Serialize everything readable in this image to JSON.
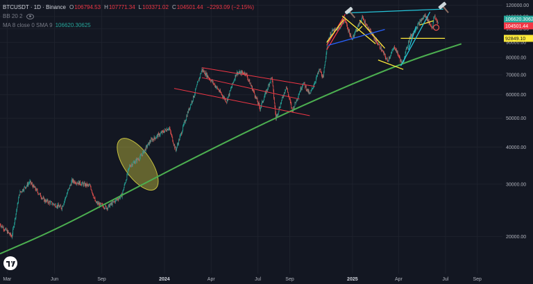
{
  "legend": {
    "symbol": "BTCUSDT · 1D · Binance",
    "o_key": "O",
    "o_val": "106794.53",
    "h_key": "H",
    "h_val": "107771.34",
    "l_key": "L",
    "l_val": "103371.02",
    "c_key": "C",
    "c_val": "104501.44",
    "change": "−2293.09 (−2.15%)",
    "bb_label": "BB 20 2",
    "ma_label": "MA 8 close 0 SMA 9",
    "ma_value": "106620.30625"
  },
  "colors": {
    "background": "#131722",
    "bull": "#26a69a",
    "bear": "#ef5350",
    "support_curve": "#4caf50",
    "channel": "#f23645",
    "yellow": "#ffeb3b",
    "cyan": "#26c6da",
    "blue": "#2962ff",
    "ellipse": "#c6c040"
  },
  "price_axis": {
    "labels": [
      "120000.00",
      "110000.00",
      "100000.00",
      "90000.00",
      "80000.00",
      "70000.00",
      "60000.00",
      "50000.00",
      "40000.00",
      "30000.00",
      "20000.00"
    ],
    "badges": [
      {
        "text": "106620.3062",
        "color": "#26a69a"
      },
      {
        "text": "104501.44",
        "color": "#f23645"
      },
      {
        "text": "92849.10",
        "color": "#ffeb3b"
      }
    ]
  },
  "time_axis": {
    "labels": [
      "Mar",
      "Jun",
      "Sep",
      "2024",
      "Apr",
      "Jul",
      "Sep",
      "2025",
      "Apr",
      "Jul",
      "Sep"
    ],
    "bold": [
      "2024",
      "2025"
    ]
  },
  "chart_data": {
    "type": "candlestick",
    "symbol": "BTCUSDT",
    "interval": "1D",
    "exchange": "Binance",
    "y_scale": "log",
    "ylim": [
      15000,
      125000
    ],
    "xlim": [
      "2023-02-15",
      "2025-10-20"
    ],
    "ohlc_last": {
      "open": 106794.53,
      "high": 107771.34,
      "low": 103371.02,
      "close": 104501.44,
      "change": -2293.09,
      "change_pct": -2.15
    },
    "ma_value": 106620.30625,
    "horizontal_level": 92849.1,
    "price_path": [
      [
        "2023-02-15",
        22000
      ],
      [
        "2023-03-10",
        20000
      ],
      [
        "2023-03-25",
        28000
      ],
      [
        "2023-04-14",
        30500
      ],
      [
        "2023-05-12",
        26500
      ],
      [
        "2023-06-15",
        25000
      ],
      [
        "2023-07-05",
        30800
      ],
      [
        "2023-08-10",
        29500
      ],
      [
        "2023-08-20",
        26000
      ],
      [
        "2023-09-11",
        25000
      ],
      [
        "2023-10-10",
        27500
      ],
      [
        "2023-10-25",
        34500
      ],
      [
        "2023-11-15",
        37000
      ],
      [
        "2023-12-05",
        42000
      ],
      [
        "2024-01-10",
        46500
      ],
      [
        "2024-01-23",
        39000
      ],
      [
        "2024-02-15",
        52000
      ],
      [
        "2024-02-28",
        60000
      ],
      [
        "2024-03-14",
        73000
      ],
      [
        "2024-04-01",
        67000
      ],
      [
        "2024-04-13",
        63000
      ],
      [
        "2024-05-01",
        57000
      ],
      [
        "2024-05-20",
        71000
      ],
      [
        "2024-06-07",
        71000
      ],
      [
        "2024-06-25",
        60000
      ],
      [
        "2024-07-05",
        54000
      ],
      [
        "2024-07-28",
        69000
      ],
      [
        "2024-08-05",
        50000
      ],
      [
        "2024-08-25",
        64000
      ],
      [
        "2024-09-06",
        53000
      ],
      [
        "2024-09-27",
        66000
      ],
      [
        "2024-10-10",
        60000
      ],
      [
        "2024-10-29",
        73000
      ],
      [
        "2024-11-05",
        68000
      ],
      [
        "2024-11-13",
        90000
      ],
      [
        "2024-11-22",
        98000
      ],
      [
        "2024-12-05",
        100000
      ],
      [
        "2024-12-17",
        108000
      ],
      [
        "2024-12-30",
        92000
      ],
      [
        "2025-01-20",
        109000
      ],
      [
        "2025-02-01",
        100000
      ],
      [
        "2025-02-25",
        86000
      ],
      [
        "2025-03-10",
        78000
      ],
      [
        "2025-03-24",
        87000
      ],
      [
        "2025-04-08",
        76000
      ],
      [
        "2025-04-22",
        93000
      ],
      [
        "2025-05-10",
        104000
      ],
      [
        "2025-05-22",
        111000
      ],
      [
        "2025-06-05",
        101000
      ],
      [
        "2025-06-09",
        110000
      ],
      [
        "2025-06-17",
        104500
      ]
    ],
    "drawings": {
      "support_curve": [
        [
          "2023-02-15",
          17500
        ],
        [
          "2023-06-01",
          21000
        ],
        [
          "2023-10-01",
          27000
        ],
        [
          "2024-03-01",
          37000
        ],
        [
          "2024-09-01",
          53000
        ],
        [
          "2025-04-01",
          76000
        ],
        [
          "2025-08-01",
          89000
        ]
      ],
      "channel_upper": [
        [
          "2024-03-14",
          74000
        ],
        [
          "2024-10-20",
          64000
        ]
      ],
      "channel_lower": [
        [
          "2024-01-20",
          63000
        ],
        [
          "2024-10-10",
          51000
        ]
      ],
      "channel_mid": [
        [
          "2024-03-14",
          68500
        ],
        [
          "2024-09-20",
          58000
        ]
      ],
      "lines": [
        {
          "color": "#f23645",
          "points": [
            [
              "2024-11-12",
              85000
            ],
            [
              "2024-12-18",
              108000
            ]
          ]
        },
        {
          "color": "#f23645",
          "points": [
            [
              "2024-11-12",
              88000
            ],
            [
              "2024-12-18",
              112000
            ]
          ]
        },
        {
          "color": "#ffeb3b",
          "points": [
            [
              "2024-11-12",
              90000
            ],
            [
              "2024-12-15",
              107500
            ]
          ]
        },
        {
          "color": "#ffeb3b",
          "points": [
            [
              "2024-12-12",
              110500
            ],
            [
              "2025-02-15",
              89000
            ]
          ]
        },
        {
          "color": "#ffeb3b",
          "points": [
            [
              "2025-01-15",
              107000
            ],
            [
              "2025-03-05",
              86000
            ]
          ]
        },
        {
          "color": "#ffeb3b",
          "points": [
            [
              "2025-02-20",
              78500
            ],
            [
              "2025-04-10",
              73000
            ]
          ]
        },
        {
          "color": "#ffeb3b",
          "points": [
            [
              "2025-04-05",
              92849.1
            ],
            [
              "2025-06-30",
              92849.1
            ]
          ]
        },
        {
          "color": "#ffeb3b",
          "points": [
            [
              "2025-05-12",
              103000
            ],
            [
              "2025-06-08",
              106500
            ]
          ]
        },
        {
          "color": "#ffeb3b",
          "points": [
            [
              "2025-01-10",
              98000
            ],
            [
              "2025-01-20",
              102000
            ]
          ]
        },
        {
          "color": "#2962ff",
          "points": [
            [
              "2024-11-15",
              88000
            ],
            [
              "2025-03-05",
              99500
            ]
          ]
        },
        {
          "color": "#26c6da",
          "points": [
            [
              "2024-12-18",
              113000
            ],
            [
              "2025-06-27",
              116500
            ]
          ]
        },
        {
          "color": "#26c6da",
          "points": [
            [
              "2025-04-05",
              75000
            ],
            [
              "2025-06-01",
              114000
            ]
          ]
        },
        {
          "color": "#26c6da",
          "points": [
            [
              "2025-04-20",
              85000
            ],
            [
              "2025-05-05",
              102000
            ]
          ]
        }
      ],
      "ellipse": {
        "center": [
          "2023-11-10",
          35000
        ],
        "x_radius_days": 26,
        "y_span": [
          28500,
          45500
        ]
      },
      "hammer_icons": [
        [
          "2024-12-28",
          113500
        ],
        [
          "2025-06-28",
          118000
        ]
      ],
      "circle_marker": [
        "2025-06-13",
        101000
      ]
    }
  }
}
